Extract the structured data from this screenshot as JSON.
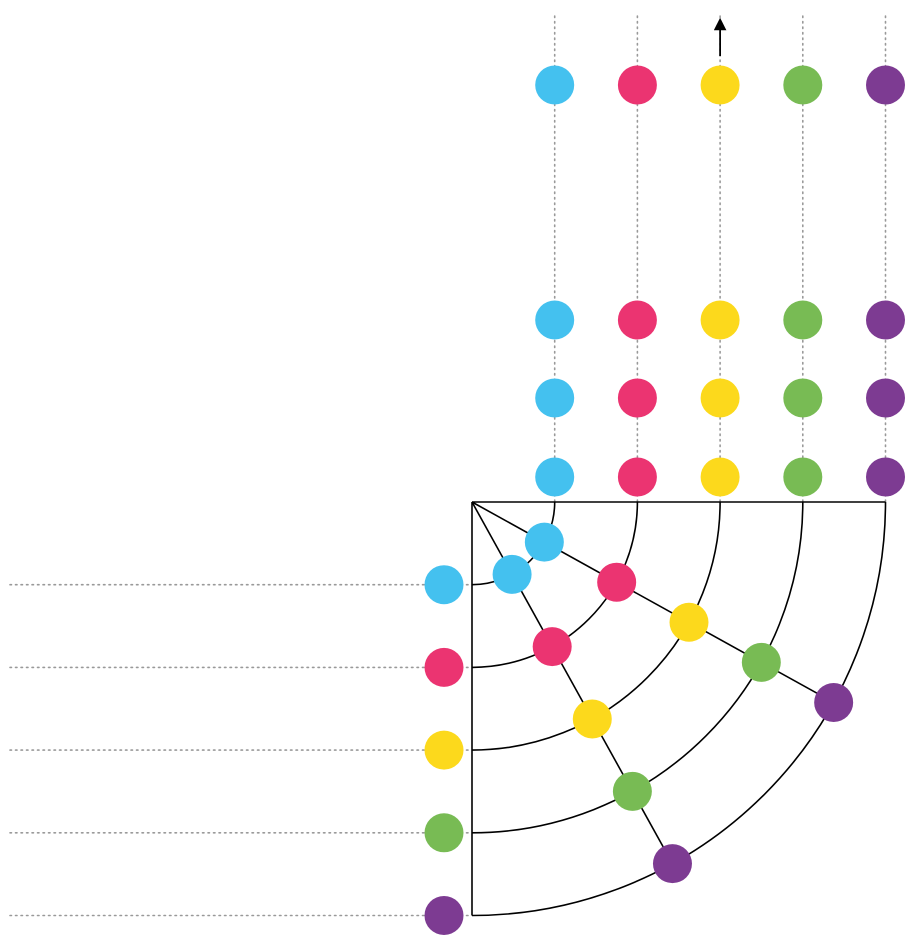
{
  "diagram": {
    "colors": [
      "#44c1ef",
      "#eb3471",
      "#fcd91c",
      "#78bb54",
      "#7d3b92"
    ],
    "color_names": [
      "blue",
      "pink",
      "yellow",
      "green",
      "purple"
    ],
    "rings": 5,
    "top_dot_rows": 4,
    "left_dot_column": 1,
    "diagonal_rays": 2,
    "arrow": {
      "direction": "up",
      "on_color": "yellow"
    },
    "line_color": "#000000",
    "guide_color": "#999999"
  }
}
